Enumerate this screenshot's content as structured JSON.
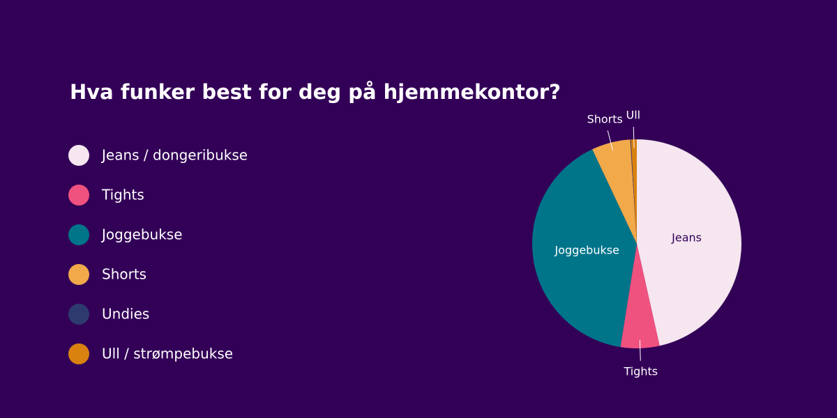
{
  "chart_data": {
    "type": "pie",
    "title": "Hva funker best for deg på hjemmekontor?",
    "categories": [
      "Jeans / dongeribukse",
      "Tights",
      "Joggebukse",
      "Shorts",
      "Undies",
      "Ull / strømpebukse"
    ],
    "values": [
      46.5,
      6,
      40.5,
      6,
      0.1,
      0.9
    ],
    "colors": [
      "#f5e6f0",
      "#f0527f",
      "#00758a",
      "#f2a94a",
      "#2e3a6e",
      "#d98210"
    ],
    "slice_labels": [
      "Jeans",
      "Tights",
      "Joggebukse",
      "Shorts",
      null,
      "Ull"
    ],
    "legend": "left"
  }
}
